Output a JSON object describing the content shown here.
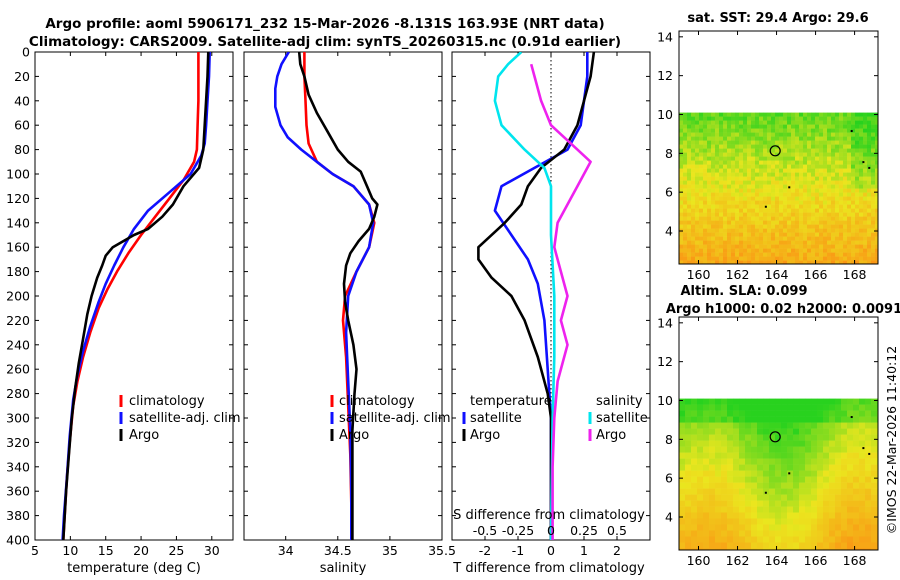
{
  "header": {
    "title_line1": "Argo profile: aoml 5906171_232 15-Mar-2026 -8.131S 163.93E (NRT data)",
    "title_line2": "Climatology: CARS2009. Satellite-adj clim: synTS_20260315.nc (0.91d earlier)"
  },
  "footer": {
    "credit": "©IMOS 22-Mar-2026 11:40:12"
  },
  "colors": {
    "red": "#ff0000",
    "blue": "#1010ff",
    "black": "#000000",
    "cyan": "#00e5ee",
    "magenta": "#ee22ee"
  },
  "chart_data": [
    {
      "id": "temperature",
      "type": "line",
      "xlabel": "temperature (deg C)",
      "xlim": [
        5,
        33
      ],
      "xticks": [
        5,
        10,
        15,
        20,
        25,
        30
      ],
      "ylim": [
        0,
        400
      ],
      "yticks": [
        0,
        20,
        40,
        60,
        80,
        100,
        120,
        140,
        160,
        180,
        200,
        220,
        240,
        260,
        280,
        300,
        320,
        340,
        360,
        380,
        400
      ],
      "legend": [
        "climatology",
        "satellite-adj. clim",
        "Argo"
      ],
      "series": [
        {
          "name": "climatology",
          "color": "red",
          "points": [
            [
              28.1,
              0
            ],
            [
              28.1,
              20
            ],
            [
              28.1,
              40
            ],
            [
              28.0,
              60
            ],
            [
              27.9,
              80
            ],
            [
              27.5,
              90
            ],
            [
              26.0,
              105
            ],
            [
              24.0,
              120
            ],
            [
              22.0,
              135
            ],
            [
              20.0,
              150
            ],
            [
              18.2,
              165
            ],
            [
              16.6,
              180
            ],
            [
              15.2,
              195
            ],
            [
              14.0,
              210
            ],
            [
              12.8,
              230
            ],
            [
              11.8,
              250
            ],
            [
              11.0,
              270
            ],
            [
              10.4,
              290
            ],
            [
              9.9,
              320
            ],
            [
              9.5,
              350
            ],
            [
              9.2,
              380
            ],
            [
              9.0,
              400
            ]
          ]
        },
        {
          "name": "satellite-adj. clim",
          "color": "blue",
          "points": [
            [
              29.7,
              0
            ],
            [
              29.6,
              20
            ],
            [
              29.4,
              40
            ],
            [
              29.2,
              60
            ],
            [
              29.0,
              75
            ],
            [
              28.5,
              85
            ],
            [
              27.0,
              100
            ],
            [
              24.0,
              115
            ],
            [
              21.0,
              130
            ],
            [
              19.0,
              145
            ],
            [
              17.5,
              160
            ],
            [
              16.2,
              175
            ],
            [
              15.0,
              190
            ],
            [
              14.0,
              205
            ],
            [
              12.8,
              225
            ],
            [
              11.8,
              245
            ],
            [
              11.0,
              265
            ],
            [
              10.4,
              285
            ],
            [
              9.9,
              315
            ],
            [
              9.5,
              350
            ],
            [
              9.1,
              380
            ],
            [
              8.9,
              400
            ]
          ]
        },
        {
          "name": "Argo",
          "color": "black",
          "points": [
            [
              29.5,
              0
            ],
            [
              29.4,
              20
            ],
            [
              29.2,
              40
            ],
            [
              29.0,
              60
            ],
            [
              28.8,
              80
            ],
            [
              28.2,
              95
            ],
            [
              26.0,
              110
            ],
            [
              24.5,
              125
            ],
            [
              23.0,
              135
            ],
            [
              21.0,
              145
            ],
            [
              19.0,
              150
            ],
            [
              17.5,
              155
            ],
            [
              16.0,
              160
            ],
            [
              15.0,
              167
            ],
            [
              14.5,
              175
            ],
            [
              13.8,
              185
            ],
            [
              13.0,
              200
            ],
            [
              12.4,
              215
            ],
            [
              11.8,
              235
            ],
            [
              11.2,
              255
            ],
            [
              10.7,
              275
            ],
            [
              10.2,
              300
            ],
            [
              9.8,
              330
            ],
            [
              9.4,
              360
            ],
            [
              9.1,
              390
            ],
            [
              9.0,
              400
            ]
          ]
        }
      ]
    },
    {
      "id": "salinity",
      "type": "line",
      "xlabel": "salinity",
      "xlim": [
        33.6,
        35.5
      ],
      "xticks": [
        34,
        34.5,
        35,
        35.5
      ],
      "ylim": [
        0,
        400
      ],
      "legend": [
        "climatology",
        "satellite-adj. clim",
        "Argo"
      ],
      "series": [
        {
          "name": "climatology",
          "color": "red",
          "points": [
            [
              34.18,
              0
            ],
            [
              34.18,
              20
            ],
            [
              34.19,
              40
            ],
            [
              34.2,
              60
            ],
            [
              34.22,
              75
            ],
            [
              34.3,
              90
            ],
            [
              34.45,
              100
            ],
            [
              34.65,
              110
            ],
            [
              34.8,
              125
            ],
            [
              34.85,
              140
            ],
            [
              34.8,
              160
            ],
            [
              34.68,
              180
            ],
            [
              34.57,
              200
            ],
            [
              34.55,
              220
            ],
            [
              34.58,
              250
            ],
            [
              34.6,
              290
            ],
            [
              34.62,
              330
            ],
            [
              34.63,
              370
            ],
            [
              34.63,
              400
            ]
          ]
        },
        {
          "name": "satellite-adj. clim",
          "color": "blue",
          "points": [
            [
              34.03,
              0
            ],
            [
              33.96,
              10
            ],
            [
              33.92,
              20
            ],
            [
              33.9,
              30
            ],
            [
              33.9,
              45
            ],
            [
              33.95,
              60
            ],
            [
              34.02,
              70
            ],
            [
              34.15,
              80
            ],
            [
              34.3,
              90
            ],
            [
              34.45,
              100
            ],
            [
              34.65,
              110
            ],
            [
              34.8,
              125
            ],
            [
              34.84,
              140
            ],
            [
              34.8,
              160
            ],
            [
              34.68,
              180
            ],
            [
              34.6,
              200
            ],
            [
              34.58,
              230
            ],
            [
              34.6,
              270
            ],
            [
              34.62,
              310
            ],
            [
              34.63,
              360
            ],
            [
              34.63,
              400
            ]
          ]
        },
        {
          "name": "Argo",
          "color": "black",
          "points": [
            [
              34.13,
              0
            ],
            [
              34.14,
              10
            ],
            [
              34.18,
              20
            ],
            [
              34.22,
              35
            ],
            [
              34.3,
              50
            ],
            [
              34.4,
              65
            ],
            [
              34.5,
              80
            ],
            [
              34.6,
              90
            ],
            [
              34.72,
              98
            ],
            [
              34.78,
              110
            ],
            [
              34.83,
              120
            ],
            [
              34.88,
              125
            ],
            [
              34.85,
              135
            ],
            [
              34.8,
              145
            ],
            [
              34.7,
              155
            ],
            [
              34.62,
              165
            ],
            [
              34.58,
              175
            ],
            [
              34.56,
              190
            ],
            [
              34.57,
              205
            ],
            [
              34.6,
              220
            ],
            [
              34.65,
              240
            ],
            [
              34.68,
              260
            ],
            [
              34.66,
              280
            ],
            [
              34.64,
              310
            ],
            [
              34.64,
              360
            ],
            [
              34.64,
              400
            ]
          ]
        }
      ]
    },
    {
      "id": "difference",
      "type": "line",
      "xlabel": "T difference from climatology",
      "top_xlabel": "S difference from climatology",
      "xlim": [
        -3,
        3
      ],
      "xticks": [
        -2,
        -1,
        0,
        1,
        2
      ],
      "top_xtick_labels": [
        "-0.5",
        "-0.25",
        "0",
        "0.25",
        "0.5"
      ],
      "top_xtick_positions": [
        -2,
        -1,
        0,
        1,
        2
      ],
      "ylim": [
        0,
        400
      ],
      "legend_temperature": {
        "title": "temperature",
        "items": [
          "satellite",
          "Argo"
        ]
      },
      "legend_salinity": {
        "title": "salinity",
        "items": [
          "satellite",
          "Argo"
        ]
      },
      "series": [
        {
          "name": "temperature satellite",
          "color": "blue",
          "points": [
            [
              1.1,
              0
            ],
            [
              1.1,
              20
            ],
            [
              1.0,
              40
            ],
            [
              0.9,
              60
            ],
            [
              0.5,
              80
            ],
            [
              -0.5,
              95
            ],
            [
              -1.5,
              110
            ],
            [
              -1.7,
              130
            ],
            [
              -1.2,
              150
            ],
            [
              -0.7,
              170
            ],
            [
              -0.4,
              190
            ],
            [
              -0.2,
              220
            ],
            [
              -0.1,
              260
            ],
            [
              0,
              300
            ],
            [
              0,
              400
            ]
          ]
        },
        {
          "name": "temperature Argo",
          "color": "black",
          "points": [
            [
              1.3,
              0
            ],
            [
              1.2,
              20
            ],
            [
              1.0,
              40
            ],
            [
              0.8,
              60
            ],
            [
              0.4,
              80
            ],
            [
              -0.3,
              95
            ],
            [
              -0.7,
              110
            ],
            [
              -0.9,
              125
            ],
            [
              -1.4,
              140
            ],
            [
              -2.2,
              160
            ],
            [
              -2.2,
              170
            ],
            [
              -1.8,
              185
            ],
            [
              -1.2,
              200
            ],
            [
              -0.8,
              220
            ],
            [
              -0.4,
              250
            ],
            [
              -0.1,
              280
            ],
            [
              0,
              300
            ],
            [
              0,
              400
            ]
          ]
        },
        {
          "name": "salinity satellite",
          "color": "cyan",
          "points": [
            [
              -0.9,
              0
            ],
            [
              -1.3,
              10
            ],
            [
              -1.6,
              20
            ],
            [
              -1.7,
              40
            ],
            [
              -1.5,
              60
            ],
            [
              -0.8,
              80
            ],
            [
              -0.2,
              95
            ],
            [
              0,
              110
            ],
            [
              0,
              150
            ],
            [
              0.1,
              200
            ],
            [
              0.1,
              250
            ],
            [
              0.05,
              300
            ],
            [
              0,
              400
            ]
          ]
        },
        {
          "name": "salinity Argo",
          "color": "magenta",
          "points": [
            [
              -0.6,
              10
            ],
            [
              -0.5,
              20
            ],
            [
              -0.3,
              40
            ],
            [
              0.0,
              60
            ],
            [
              0.8,
              80
            ],
            [
              1.2,
              90
            ],
            [
              0.8,
              110
            ],
            [
              0.6,
              120
            ],
            [
              0.2,
              140
            ],
            [
              0.1,
              160
            ],
            [
              0.3,
              180
            ],
            [
              0.5,
              200
            ],
            [
              0.3,
              220
            ],
            [
              0.5,
              240
            ],
            [
              0.2,
              270
            ],
            [
              0.1,
              300
            ],
            [
              0.05,
              340
            ],
            [
              0.05,
              400
            ]
          ]
        }
      ]
    },
    {
      "id": "sst-map",
      "type": "heatmap",
      "title": "sat. SST: 29.4 Argo: 29.6",
      "xlim": [
        159,
        169.2
      ],
      "xticks": [
        160,
        162,
        164,
        166,
        168
      ],
      "ylim": [
        2.3,
        14.3
      ],
      "yticks": [
        4,
        6,
        8,
        10,
        12,
        14
      ],
      "data_top": 10.1,
      "argo_position": [
        163.93,
        8.13
      ]
    },
    {
      "id": "sla-map",
      "type": "heatmap",
      "title": "Altim. SLA: 0.099",
      "subtitle": "Argo h1000: 0.02 h2000: 0.0091",
      "xlim": [
        159,
        169.2
      ],
      "xticks": [
        160,
        162,
        164,
        166,
        168
      ],
      "ylim": [
        2.3,
        14.3
      ],
      "yticks": [
        4,
        6,
        8,
        10,
        12,
        14
      ],
      "data_top": 10.1,
      "argo_position": [
        163.93,
        8.13
      ]
    }
  ]
}
